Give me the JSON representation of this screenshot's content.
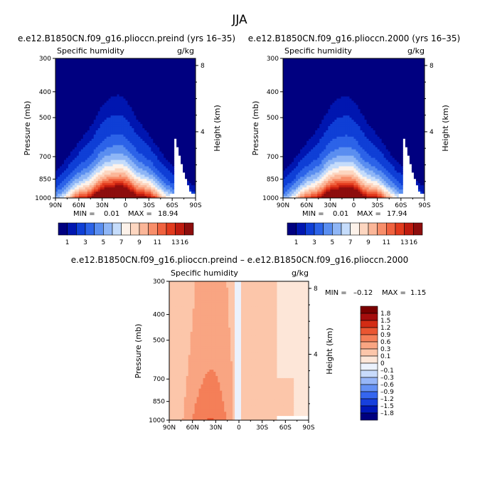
{
  "figure_title": "JJA",
  "colors": {
    "seq": [
      "#000080",
      "#0016b0",
      "#0f3fd6",
      "#2c63e8",
      "#5a8ef0",
      "#8fb6f6",
      "#c5dcfb",
      "#fdf2ea",
      "#fdd6c0",
      "#fbb698",
      "#f88e6a",
      "#f0623f",
      "#e23a1d",
      "#bf1b0f",
      "#8d0d0d"
    ],
    "diff": [
      "#00007f",
      "#0018b8",
      "#1740dd",
      "#3566ef",
      "#6591f4",
      "#97b6f8",
      "#c8dbfb",
      "#ebf2fd",
      "#fde6d8",
      "#fcc6aa",
      "#f9a582",
      "#f47f58",
      "#ea5631",
      "#d32c14",
      "#a50d0d",
      "#7a0000"
    ],
    "land": "#ffffff"
  },
  "chart_data": [
    {
      "type": "heatmap",
      "id": "panel_preind",
      "title": "e.e12.B1850CN.f09_g16.pliocc​n.preind (yrs 16–35)",
      "left_label": "Specific humidity",
      "right_label": "g/kg",
      "xlabel": "",
      "ylabel": "Pressure (mb)",
      "ylabel_right": "Height (km)",
      "x_ticks": [
        "90N",
        "60N",
        "30N",
        "0",
        "30S",
        "60S",
        "90S"
      ],
      "x_values": [
        90,
        60,
        30,
        0,
        -30,
        -60,
        -90
      ],
      "y_ticks": [
        "300",
        "400",
        "500",
        "700",
        "850",
        "1000"
      ],
      "y_values": [
        300,
        400,
        500,
        700,
        850,
        1000
      ],
      "y2_ticks": [
        "8",
        "4"
      ],
      "y2_values": [
        8,
        4
      ],
      "ylim": [
        1000,
        300
      ],
      "xlim": [
        90,
        -90
      ],
      "stats": {
        "min_label": "MIN =",
        "min": "0.01",
        "max_label": "MAX =",
        "max": "18.94"
      },
      "levels": [
        0.5,
        1,
        2,
        3,
        4,
        5,
        6,
        7,
        8,
        9,
        10,
        11,
        12,
        13,
        16
      ],
      "colorbar_labels": [
        "1",
        "3",
        "5",
        "7",
        "9",
        "11",
        "13",
        "16"
      ],
      "peak": 18.94,
      "center_lat": 12,
      "width_deg": 48,
      "land_cut": -58
    },
    {
      "type": "heatmap",
      "id": "panel_2000",
      "title": "e.e12.B1850CN.f09_g16.pliocc​n.2000 (yrs 16–35)",
      "left_label": "Specific humidity",
      "right_label": "g/kg",
      "xlabel": "",
      "ylabel": "Pressure (mb)",
      "ylabel_right": "Height (km)",
      "x_ticks": [
        "90N",
        "60N",
        "30N",
        "0",
        "30S",
        "60S",
        "90S"
      ],
      "x_values": [
        90,
        60,
        30,
        0,
        -30,
        -60,
        -90
      ],
      "y_ticks": [
        "300",
        "400",
        "500",
        "700",
        "850",
        "1000"
      ],
      "y_values": [
        300,
        400,
        500,
        700,
        850,
        1000
      ],
      "y2_ticks": [
        "8",
        "4"
      ],
      "y2_values": [
        8,
        4
      ],
      "ylim": [
        1000,
        300
      ],
      "xlim": [
        90,
        -90
      ],
      "stats": {
        "min_label": "MIN =",
        "min": "0.01",
        "max_label": "MAX =",
        "max": "17.94"
      },
      "levels": [
        0.5,
        1,
        2,
        3,
        4,
        5,
        6,
        7,
        8,
        9,
        10,
        11,
        12,
        13,
        16
      ],
      "colorbar_labels": [
        "1",
        "3",
        "5",
        "7",
        "9",
        "11",
        "13",
        "16"
      ],
      "peak": 17.94,
      "center_lat": 12,
      "width_deg": 48,
      "land_cut": -58
    },
    {
      "type": "heatmap",
      "id": "panel_diff",
      "title": "e.e12.B1850CN.f09_g16.pliocc​n.preind – e.e12.B1850CN.f09_g16.pliocc​n.2000",
      "left_label": "Specific humidity",
      "right_label": "g/kg",
      "xlabel": "",
      "ylabel": "Pressure (mb)",
      "ylabel_right": "Height (km)",
      "x_ticks": [
        "90N",
        "60N",
        "30N",
        "0",
        "30S",
        "60S",
        "90S"
      ],
      "x_values": [
        90,
        60,
        30,
        0,
        -30,
        -60,
        -90
      ],
      "y_ticks": [
        "300",
        "400",
        "500",
        "700",
        "850",
        "1000"
      ],
      "y_values": [
        300,
        400,
        500,
        700,
        850,
        1000
      ],
      "y2_ticks": [
        "8",
        "4"
      ],
      "y2_values": [
        8,
        4
      ],
      "ylim": [
        1000,
        300
      ],
      "xlim": [
        90,
        -90
      ],
      "stats": {
        "min_label": "MIN =",
        "min": "–0.12",
        "max_label": "MAX =",
        "max": "1.15"
      },
      "levels": [
        -1.8,
        -1.5,
        -1.2,
        -0.9,
        -0.6,
        -0.3,
        -0.1,
        0,
        0.1,
        0.3,
        0.6,
        0.9,
        1.2,
        1.5,
        1.8
      ],
      "colorbar_labels": [
        "1.8",
        "1.5",
        "1.2",
        "0.9",
        "0.6",
        "0.3",
        "0.1",
        "0",
        "–0.1",
        "–0.3",
        "–0.6",
        "–0.9",
        "–1.2",
        "–1.5",
        "–1.8"
      ],
      "land_cut": -48
    }
  ]
}
